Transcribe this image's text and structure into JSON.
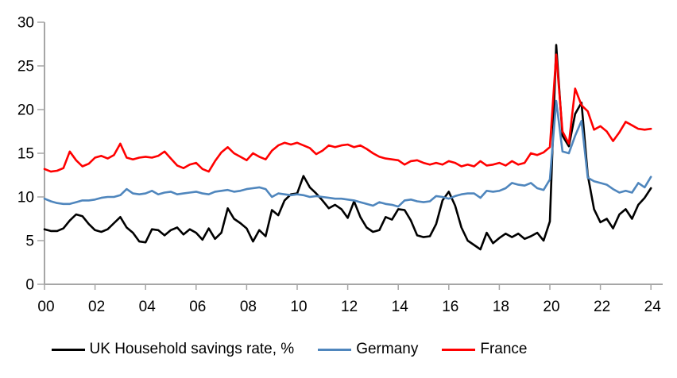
{
  "chart_data": {
    "type": "line",
    "title": "",
    "xlabel": "",
    "ylabel": "",
    "x_axis": {
      "tick_labels": [
        "00",
        "02",
        "04",
        "06",
        "08",
        "10",
        "12",
        "14",
        "16",
        "18",
        "20",
        "22",
        "24"
      ],
      "tick_years": [
        2000,
        2002,
        2004,
        2006,
        2008,
        2010,
        2012,
        2014,
        2016,
        2018,
        2020,
        2022,
        2024
      ],
      "range": [
        2000,
        2024.5
      ]
    },
    "y_axis": {
      "tick_labels": [
        "0",
        "5",
        "10",
        "15",
        "20",
        "25",
        "30"
      ],
      "tick_values": [
        0,
        5,
        10,
        15,
        20,
        25,
        30
      ],
      "range": [
        0,
        30
      ]
    },
    "grid": "off",
    "legend_position": "bottom",
    "frequency": "quarterly",
    "x_start": 2000.0,
    "x_step": 0.25,
    "series": [
      {
        "name": "UK Household savings rate, %",
        "color": "#000000",
        "values": [
          6.3,
          6.1,
          6.1,
          6.4,
          7.3,
          8.0,
          7.8,
          6.9,
          6.2,
          6.0,
          6.3,
          7.0,
          7.7,
          6.5,
          5.9,
          4.9,
          4.8,
          6.3,
          6.2,
          5.6,
          6.2,
          6.5,
          5.7,
          6.3,
          5.9,
          5.1,
          6.4,
          5.2,
          5.9,
          8.7,
          7.5,
          7.0,
          6.4,
          4.9,
          6.2,
          5.5,
          8.5,
          7.9,
          9.6,
          10.3,
          10.4,
          12.4,
          11.1,
          10.4,
          9.6,
          8.7,
          9.1,
          8.6,
          7.6,
          9.5,
          7.7,
          6.5,
          6.0,
          6.2,
          7.7,
          7.4,
          8.6,
          8.5,
          7.3,
          5.6,
          5.4,
          5.5,
          6.9,
          9.6,
          10.6,
          9.0,
          6.5,
          5.0,
          4.5,
          4.0,
          5.9,
          4.7,
          5.3,
          5.8,
          5.4,
          5.8,
          5.2,
          5.5,
          5.9,
          5.0,
          7.2,
          27.4,
          17.0,
          15.8,
          19.5,
          20.8,
          12.5,
          8.6,
          7.1,
          7.5,
          6.4,
          8.0,
          8.6,
          7.5,
          9.1,
          9.9,
          11.0
        ]
      },
      {
        "name": "Germany",
        "color": "#4f86bd",
        "values": [
          9.8,
          9.5,
          9.3,
          9.2,
          9.2,
          9.4,
          9.6,
          9.6,
          9.7,
          9.9,
          10.0,
          10.0,
          10.2,
          10.9,
          10.4,
          10.3,
          10.4,
          10.7,
          10.3,
          10.5,
          10.6,
          10.3,
          10.4,
          10.5,
          10.6,
          10.4,
          10.3,
          10.6,
          10.7,
          10.8,
          10.6,
          10.7,
          10.9,
          11.0,
          11.1,
          10.9,
          10.0,
          10.4,
          10.3,
          10.2,
          10.3,
          10.2,
          10.0,
          10.1,
          10.0,
          9.9,
          9.8,
          9.8,
          9.7,
          9.6,
          9.4,
          9.2,
          9.0,
          9.4,
          9.2,
          9.1,
          8.9,
          9.6,
          9.7,
          9.5,
          9.4,
          9.5,
          10.1,
          10.0,
          9.8,
          10.1,
          10.3,
          10.4,
          10.4,
          9.9,
          10.7,
          10.6,
          10.7,
          11.0,
          11.6,
          11.4,
          11.3,
          11.6,
          11.0,
          10.8,
          12.0,
          21.0,
          15.2,
          15.0,
          17.0,
          18.7,
          12.2,
          11.8,
          11.6,
          11.4,
          10.9,
          10.5,
          10.7,
          10.5,
          11.6,
          11.1,
          12.3
        ]
      },
      {
        "name": "France",
        "color": "#ff0000",
        "values": [
          13.2,
          12.9,
          13.0,
          13.3,
          15.2,
          14.2,
          13.5,
          13.8,
          14.5,
          14.7,
          14.4,
          14.8,
          16.1,
          14.5,
          14.3,
          14.5,
          14.6,
          14.5,
          14.7,
          15.2,
          14.4,
          13.6,
          13.3,
          13.7,
          13.9,
          13.2,
          12.9,
          14.1,
          15.1,
          15.7,
          15.0,
          14.6,
          14.2,
          15.0,
          14.6,
          14.3,
          15.3,
          15.9,
          16.2,
          16.0,
          16.2,
          15.9,
          15.6,
          14.9,
          15.3,
          15.9,
          15.7,
          15.9,
          16.0,
          15.7,
          15.9,
          15.5,
          15.0,
          14.6,
          14.4,
          14.3,
          14.2,
          13.7,
          14.1,
          14.2,
          13.9,
          13.7,
          13.9,
          13.7,
          14.1,
          13.9,
          13.5,
          13.7,
          13.5,
          14.1,
          13.6,
          13.7,
          13.9,
          13.6,
          14.1,
          13.7,
          13.9,
          15.0,
          14.8,
          15.1,
          15.7,
          26.3,
          17.5,
          16.1,
          22.4,
          20.5,
          19.8,
          17.7,
          18.1,
          17.5,
          16.4,
          17.4,
          18.6,
          18.2,
          17.8,
          17.7,
          17.8
        ]
      }
    ]
  },
  "colors": {
    "axis": "#a6a6a6",
    "text": "#000000",
    "background": "#ffffff"
  }
}
